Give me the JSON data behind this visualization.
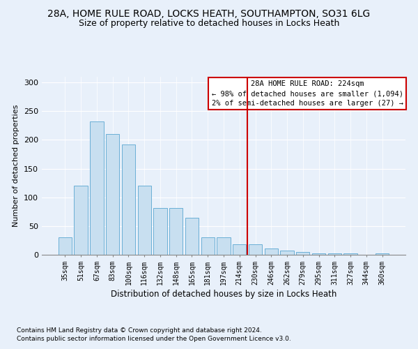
{
  "title1": "28A, HOME RULE ROAD, LOCKS HEATH, SOUTHAMPTON, SO31 6LG",
  "title2": "Size of property relative to detached houses in Locks Heath",
  "xlabel": "Distribution of detached houses by size in Locks Heath",
  "ylabel": "Number of detached properties",
  "categories": [
    "35sqm",
    "51sqm",
    "67sqm",
    "83sqm",
    "100sqm",
    "116sqm",
    "132sqm",
    "148sqm",
    "165sqm",
    "181sqm",
    "197sqm",
    "214sqm",
    "230sqm",
    "246sqm",
    "262sqm",
    "279sqm",
    "295sqm",
    "311sqm",
    "327sqm",
    "344sqm",
    "360sqm"
  ],
  "values": [
    30,
    120,
    232,
    210,
    192,
    120,
    82,
    82,
    65,
    30,
    30,
    18,
    18,
    11,
    7,
    5,
    3,
    3,
    2,
    0,
    2
  ],
  "bar_color": "#c8dff0",
  "bar_edge_color": "#6aafd6",
  "annotation_text": "28A HOME RULE ROAD: 224sqm\n← 98% of detached houses are smaller (1,094)\n2% of semi-detached houses are larger (27) →",
  "vline_color": "#cc0000",
  "annotation_box_color": "#ffffff",
  "annotation_box_edge": "#cc0000",
  "footer1": "Contains HM Land Registry data © Crown copyright and database right 2024.",
  "footer2": "Contains public sector information licensed under the Open Government Licence v3.0.",
  "ylim": [
    0,
    310
  ],
  "yticks": [
    0,
    50,
    100,
    150,
    200,
    250,
    300
  ],
  "bg_color": "#e8f0fa",
  "plot_bg_color": "#e8f0fa",
  "title_fontsize": 10,
  "subtitle_fontsize": 9
}
